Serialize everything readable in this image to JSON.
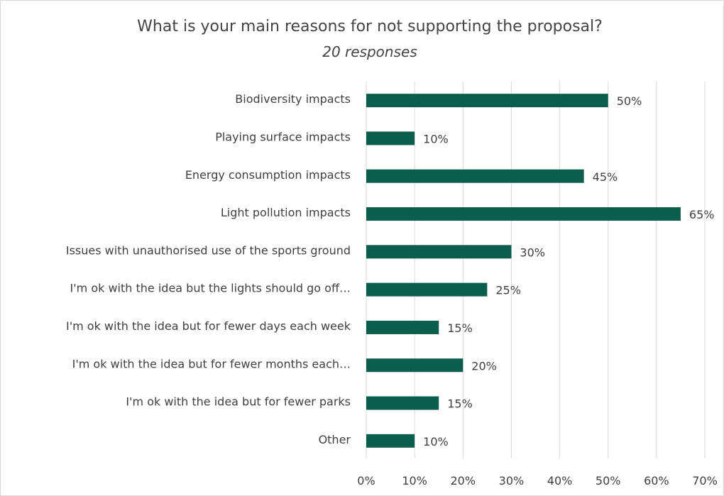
{
  "chart_data": {
    "type": "bar",
    "orientation": "horizontal",
    "title": "What is your main reasons for not supporting the proposal?",
    "subtitle": "20 responses",
    "categories": [
      "Biodiversity impacts",
      "Playing surface impacts",
      "Energy consumption impacts",
      "Light pollution impacts",
      "Issues with unauthorised use of the sports ground",
      "I'm ok with the idea but the lights should go off…",
      "I'm ok with the idea but for fewer days each week",
      "I'm ok with the idea but for fewer months each…",
      "I'm ok with the idea but for fewer parks",
      "Other"
    ],
    "values": [
      50,
      10,
      45,
      65,
      30,
      25,
      15,
      20,
      15,
      10
    ],
    "data_labels": [
      "50%",
      "10%",
      "45%",
      "65%",
      "30%",
      "25%",
      "15%",
      "20%",
      "15%",
      "10%"
    ],
    "x_ticks": [
      "0%",
      "10%",
      "20%",
      "30%",
      "40%",
      "50%",
      "60%",
      "70%"
    ],
    "xlim": [
      0,
      70
    ],
    "xlabel": "",
    "ylabel": "",
    "grid": "vertical",
    "legend": "none",
    "colors": {
      "bar": "#0b5e4c",
      "grid": "#d9d9d9",
      "text": "#404040"
    }
  }
}
